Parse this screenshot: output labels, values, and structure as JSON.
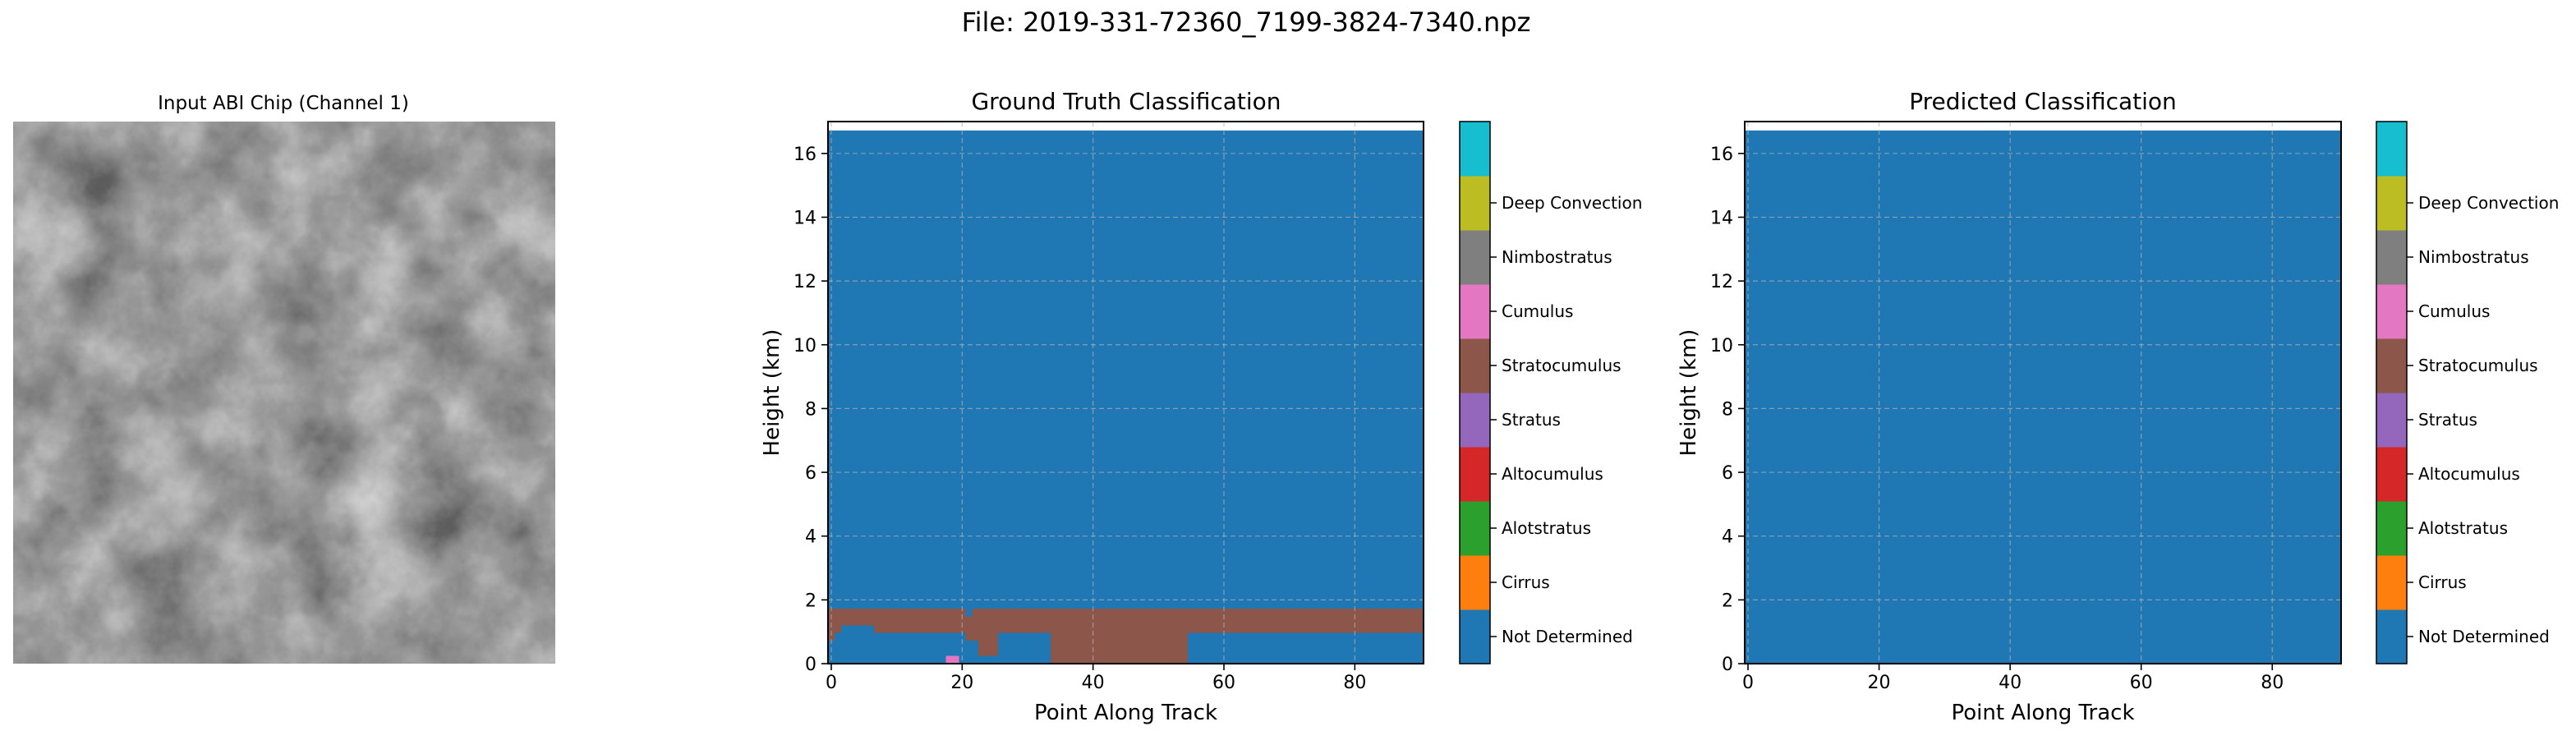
{
  "figure": {
    "suptitle": "File: 2019-331-72360_7199-3824-7340.npz"
  },
  "colors": {
    "classes": [
      "#1f77b4",
      "#ff7f0e",
      "#2ca02c",
      "#d62728",
      "#9467bd",
      "#8c564b",
      "#e377c2",
      "#7f7f7f",
      "#bcbd22",
      "#17becf"
    ]
  },
  "image_panel": {
    "title": "Input ABI Chip (Channel 1)"
  },
  "chart_data": [
    {
      "type": "heatmap",
      "title": "Ground Truth Classification",
      "xlabel": "Point Along Track",
      "ylabel": "Height (km)",
      "xlim": [
        -0.5,
        90.5
      ],
      "ylim": [
        0,
        17
      ],
      "xticks": [
        0,
        20,
        40,
        60,
        80
      ],
      "yticks": [
        0,
        2,
        4,
        6,
        8,
        10,
        12,
        14,
        16
      ],
      "grid": true,
      "background_class": "Not Determined",
      "cells": [
        {
          "class": "Stratocumulus",
          "x": [
            -0.5,
            90.5
          ],
          "y": [
            0.96,
            1.72
          ]
        },
        {
          "class": "Not Determined",
          "x": [
            1.5,
            6.5
          ],
          "y": [
            0.96,
            1.2
          ]
        },
        {
          "class": "Not Determined",
          "x": [
            20.5,
            21.5
          ],
          "y": [
            1.48,
            1.72
          ]
        },
        {
          "class": "Stratocumulus",
          "x": [
            -0.5,
            0.5
          ],
          "y": [
            0.72,
            0.96
          ]
        },
        {
          "class": "Stratocumulus",
          "x": [
            20.5,
            22.5
          ],
          "y": [
            0.72,
            0.96
          ]
        },
        {
          "class": "Stratocumulus",
          "x": [
            22.5,
            25.5
          ],
          "y": [
            0.24,
            0.96
          ]
        },
        {
          "class": "Stratocumulus",
          "x": [
            33.5,
            54.5
          ],
          "y": [
            0.0,
            0.96
          ]
        },
        {
          "class": "Cumulus",
          "x": [
            17.5,
            19.5
          ],
          "y": [
            0.0,
            0.24
          ]
        }
      ]
    },
    {
      "type": "heatmap",
      "title": "Predicted Classification",
      "xlabel": "Point Along Track",
      "ylabel": "Height (km)",
      "xlim": [
        -0.5,
        90.5
      ],
      "ylim": [
        0,
        17
      ],
      "xticks": [
        0,
        20,
        40,
        60,
        80
      ],
      "yticks": [
        0,
        2,
        4,
        6,
        8,
        10,
        12,
        14,
        16
      ],
      "grid": true,
      "background_class": "Not Determined",
      "cells": []
    }
  ],
  "colorbar": {
    "labels": [
      "Not Determined",
      "Cirrus",
      "Alotstratus",
      "Altocumulus",
      "Stratus",
      "Stratocumulus",
      "Cumulus",
      "Nimbostratus",
      "Deep Convection"
    ]
  }
}
